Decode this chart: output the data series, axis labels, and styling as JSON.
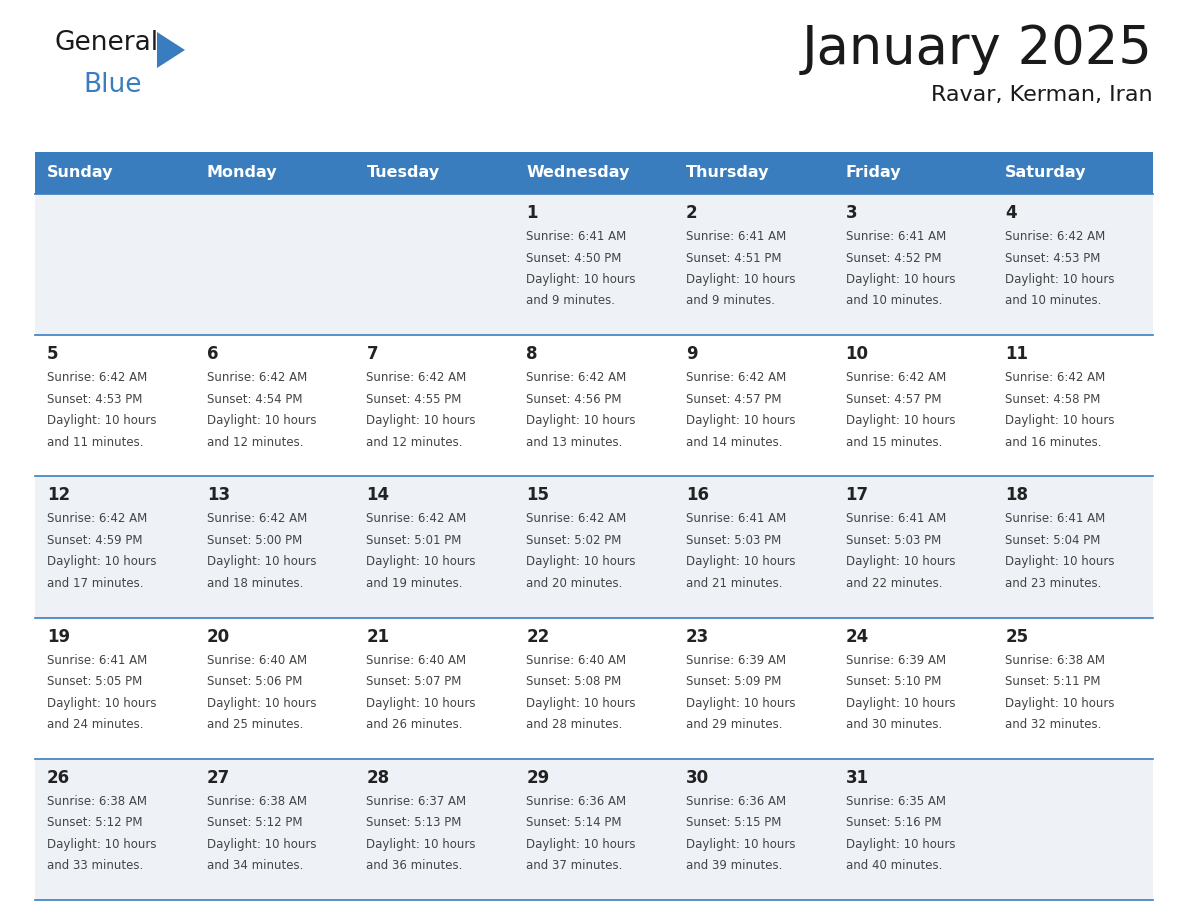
{
  "title": "January 2025",
  "subtitle": "Ravar, Kerman, Iran",
  "days_of_week": [
    "Sunday",
    "Monday",
    "Tuesday",
    "Wednesday",
    "Thursday",
    "Friday",
    "Saturday"
  ],
  "header_bg": "#3a7dbf",
  "header_text_color": "#ffffff",
  "row_bg_light": "#eef2f7",
  "row_bg_white": "#ffffff",
  "cell_border_color": "#3a7dbf",
  "text_color": "#444444",
  "day_num_color": "#222222",
  "calendar": [
    [
      {
        "day": null,
        "sunrise": null,
        "sunset": null,
        "daylight": null
      },
      {
        "day": null,
        "sunrise": null,
        "sunset": null,
        "daylight": null
      },
      {
        "day": null,
        "sunrise": null,
        "sunset": null,
        "daylight": null
      },
      {
        "day": 1,
        "sunrise": "6:41 AM",
        "sunset": "4:50 PM",
        "daylight": "10 hours and 9 minutes."
      },
      {
        "day": 2,
        "sunrise": "6:41 AM",
        "sunset": "4:51 PM",
        "daylight": "10 hours and 9 minutes."
      },
      {
        "day": 3,
        "sunrise": "6:41 AM",
        "sunset": "4:52 PM",
        "daylight": "10 hours and 10 minutes."
      },
      {
        "day": 4,
        "sunrise": "6:42 AM",
        "sunset": "4:53 PM",
        "daylight": "10 hours and 10 minutes."
      }
    ],
    [
      {
        "day": 5,
        "sunrise": "6:42 AM",
        "sunset": "4:53 PM",
        "daylight": "10 hours and 11 minutes."
      },
      {
        "day": 6,
        "sunrise": "6:42 AM",
        "sunset": "4:54 PM",
        "daylight": "10 hours and 12 minutes."
      },
      {
        "day": 7,
        "sunrise": "6:42 AM",
        "sunset": "4:55 PM",
        "daylight": "10 hours and 12 minutes."
      },
      {
        "day": 8,
        "sunrise": "6:42 AM",
        "sunset": "4:56 PM",
        "daylight": "10 hours and 13 minutes."
      },
      {
        "day": 9,
        "sunrise": "6:42 AM",
        "sunset": "4:57 PM",
        "daylight": "10 hours and 14 minutes."
      },
      {
        "day": 10,
        "sunrise": "6:42 AM",
        "sunset": "4:57 PM",
        "daylight": "10 hours and 15 minutes."
      },
      {
        "day": 11,
        "sunrise": "6:42 AM",
        "sunset": "4:58 PM",
        "daylight": "10 hours and 16 minutes."
      }
    ],
    [
      {
        "day": 12,
        "sunrise": "6:42 AM",
        "sunset": "4:59 PM",
        "daylight": "10 hours and 17 minutes."
      },
      {
        "day": 13,
        "sunrise": "6:42 AM",
        "sunset": "5:00 PM",
        "daylight": "10 hours and 18 minutes."
      },
      {
        "day": 14,
        "sunrise": "6:42 AM",
        "sunset": "5:01 PM",
        "daylight": "10 hours and 19 minutes."
      },
      {
        "day": 15,
        "sunrise": "6:42 AM",
        "sunset": "5:02 PM",
        "daylight": "10 hours and 20 minutes."
      },
      {
        "day": 16,
        "sunrise": "6:41 AM",
        "sunset": "5:03 PM",
        "daylight": "10 hours and 21 minutes."
      },
      {
        "day": 17,
        "sunrise": "6:41 AM",
        "sunset": "5:03 PM",
        "daylight": "10 hours and 22 minutes."
      },
      {
        "day": 18,
        "sunrise": "6:41 AM",
        "sunset": "5:04 PM",
        "daylight": "10 hours and 23 minutes."
      }
    ],
    [
      {
        "day": 19,
        "sunrise": "6:41 AM",
        "sunset": "5:05 PM",
        "daylight": "10 hours and 24 minutes."
      },
      {
        "day": 20,
        "sunrise": "6:40 AM",
        "sunset": "5:06 PM",
        "daylight": "10 hours and 25 minutes."
      },
      {
        "day": 21,
        "sunrise": "6:40 AM",
        "sunset": "5:07 PM",
        "daylight": "10 hours and 26 minutes."
      },
      {
        "day": 22,
        "sunrise": "6:40 AM",
        "sunset": "5:08 PM",
        "daylight": "10 hours and 28 minutes."
      },
      {
        "day": 23,
        "sunrise": "6:39 AM",
        "sunset": "5:09 PM",
        "daylight": "10 hours and 29 minutes."
      },
      {
        "day": 24,
        "sunrise": "6:39 AM",
        "sunset": "5:10 PM",
        "daylight": "10 hours and 30 minutes."
      },
      {
        "day": 25,
        "sunrise": "6:38 AM",
        "sunset": "5:11 PM",
        "daylight": "10 hours and 32 minutes."
      }
    ],
    [
      {
        "day": 26,
        "sunrise": "6:38 AM",
        "sunset": "5:12 PM",
        "daylight": "10 hours and 33 minutes."
      },
      {
        "day": 27,
        "sunrise": "6:38 AM",
        "sunset": "5:12 PM",
        "daylight": "10 hours and 34 minutes."
      },
      {
        "day": 28,
        "sunrise": "6:37 AM",
        "sunset": "5:13 PM",
        "daylight": "10 hours and 36 minutes."
      },
      {
        "day": 29,
        "sunrise": "6:36 AM",
        "sunset": "5:14 PM",
        "daylight": "10 hours and 37 minutes."
      },
      {
        "day": 30,
        "sunrise": "6:36 AM",
        "sunset": "5:15 PM",
        "daylight": "10 hours and 39 minutes."
      },
      {
        "day": 31,
        "sunrise": "6:35 AM",
        "sunset": "5:16 PM",
        "daylight": "10 hours and 40 minutes."
      },
      {
        "day": null,
        "sunrise": null,
        "sunset": null,
        "daylight": null
      }
    ]
  ]
}
